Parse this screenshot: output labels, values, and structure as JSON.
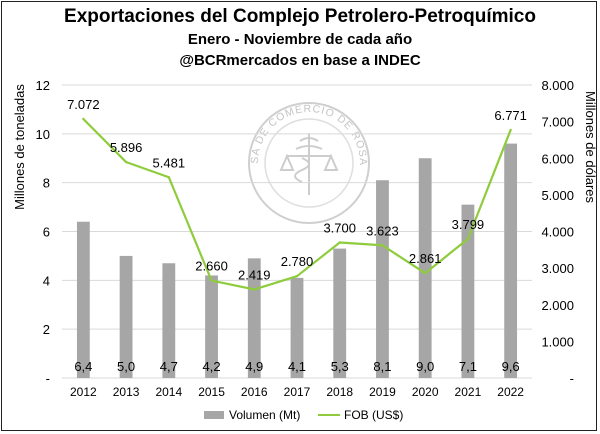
{
  "header": {
    "title": "Exportaciones del Complejo Petrolero-Petroquímico",
    "subtitle": "Enero - Noviembre de cada año",
    "source": "@BCRmercados en base a INDEC"
  },
  "watermark": {
    "text": "BOLSA DE COMERCIO DE ROSARIO",
    "icon": "caduceus-scales-seal-icon"
  },
  "colors": {
    "bar": "#a6a6a6",
    "line": "#8ecc3c",
    "text": "#000000",
    "grid": "#d9d9d9"
  },
  "chart_data": {
    "type": "bar",
    "categories": [
      "2012",
      "2013",
      "2014",
      "2015",
      "2016",
      "2017",
      "2018",
      "2019",
      "2020",
      "2021",
      "2022"
    ],
    "series": [
      {
        "name": "Volumen (Mt)",
        "type": "bar",
        "axis": "left",
        "values": [
          6.4,
          5.0,
          4.7,
          4.2,
          4.9,
          4.1,
          5.3,
          8.1,
          9.0,
          7.1,
          9.6
        ],
        "labels": [
          "6,4",
          "5,0",
          "4,7",
          "4,2",
          "4,9",
          "4,1",
          "5,3",
          "8,1",
          "9,0",
          "7,1",
          "9,6"
        ]
      },
      {
        "name": "FOB (US$)",
        "type": "line",
        "axis": "right",
        "values": [
          7072,
          5896,
          5481,
          2660,
          2419,
          2780,
          3700,
          3623,
          2861,
          3799,
          6771
        ],
        "labels": [
          "7.072",
          "5.896",
          "5.481",
          "2.660",
          "2.419",
          "2.780",
          "3.700",
          "3.623",
          "2.861",
          "3.799",
          "6.771"
        ]
      }
    ],
    "ylabel": "Millones de toneladas",
    "y2label": "Millones de dólares",
    "ylim": [
      0,
      12
    ],
    "y2lim": [
      0,
      8000
    ],
    "yticks": [
      0,
      2,
      4,
      6,
      8,
      10,
      12
    ],
    "ytick_labels": [
      "-",
      "2",
      "4",
      "6",
      "8",
      "10",
      "12"
    ],
    "y2ticks": [
      0,
      1000,
      2000,
      3000,
      4000,
      5000,
      6000,
      7000,
      8000
    ],
    "y2tick_labels": [
      "-",
      "1.000",
      "2.000",
      "3.000",
      "4.000",
      "5.000",
      "6.000",
      "7.000",
      "8.000"
    ],
    "grid": true,
    "legend": "bottom"
  }
}
